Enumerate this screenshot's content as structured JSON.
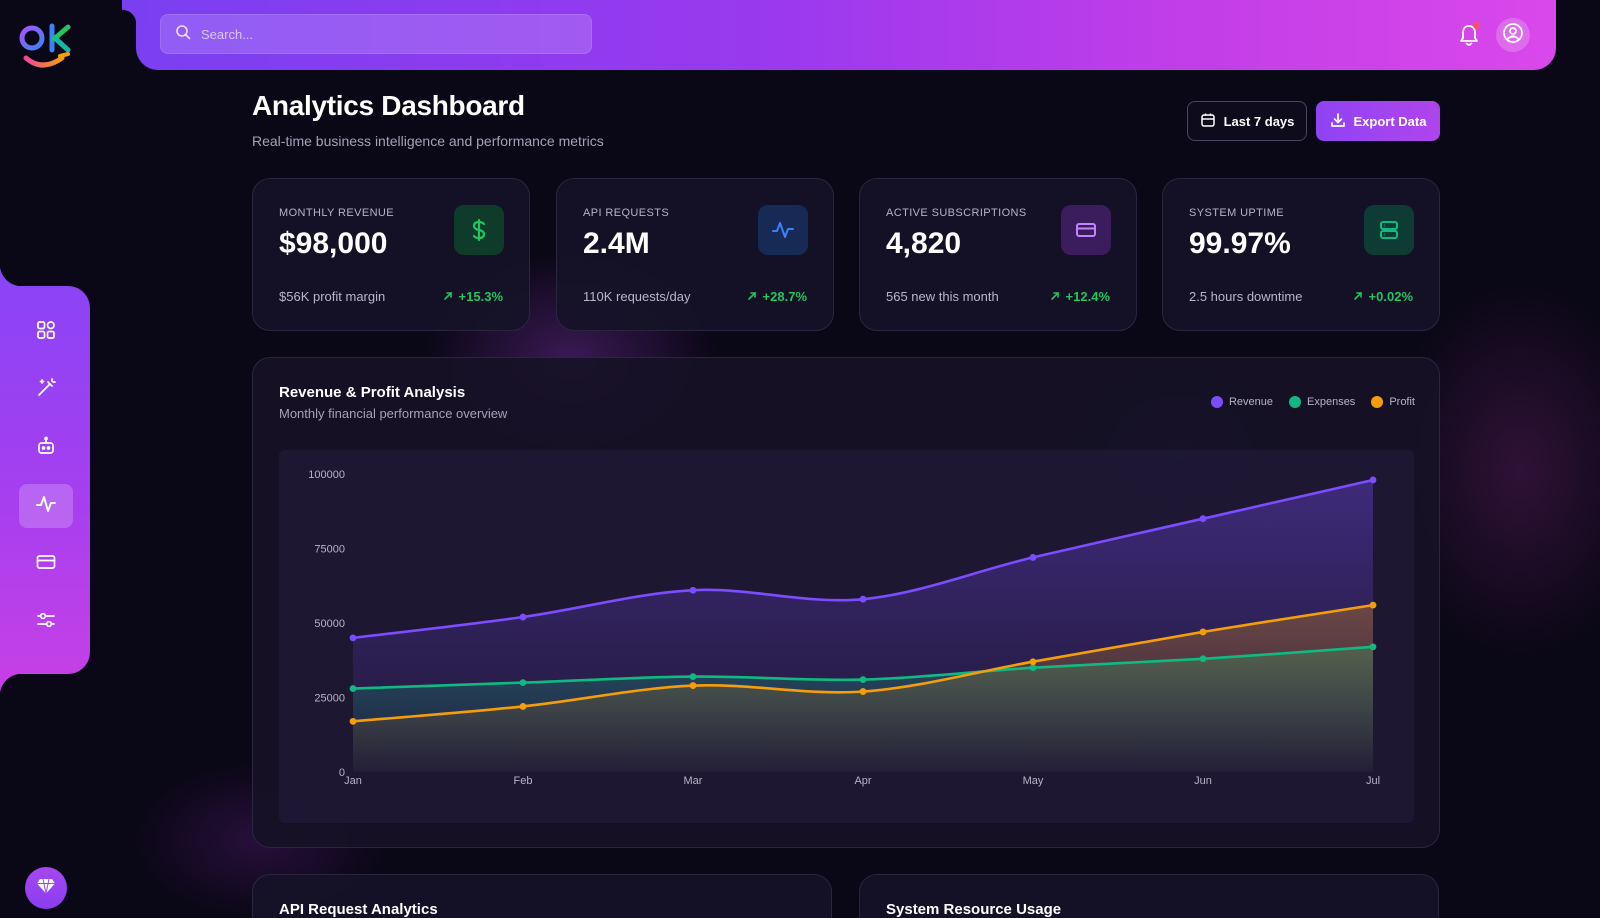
{
  "brand": {
    "logo_text": "OK"
  },
  "header": {
    "search_placeholder": "Search...",
    "notification_icon": "bell-icon",
    "user_icon": "user-circle-icon"
  },
  "sidebar": {
    "items": [
      {
        "icon": "dashboard-grid-icon",
        "active": false
      },
      {
        "icon": "magic-wand-icon",
        "active": false
      },
      {
        "icon": "robot-icon",
        "active": false
      },
      {
        "icon": "activity-pulse-icon",
        "active": true
      },
      {
        "icon": "credit-card-icon",
        "active": false
      },
      {
        "icon": "sliders-icon",
        "active": false
      }
    ],
    "premium_icon": "diamond-icon"
  },
  "page": {
    "title": "Analytics Dashboard",
    "subtitle": "Real-time business intelligence and performance metrics",
    "range_label": "Last 7 days",
    "export_label": "Export Data"
  },
  "stats": [
    {
      "label": "MONTHLY REVENUE",
      "value": "$98,000",
      "footnote": "$56K profit margin",
      "change": "+15.3%",
      "icon": "dollar-icon",
      "icon_color": "#22c55e",
      "icon_bg": "#0f3b2a"
    },
    {
      "label": "API REQUESTS",
      "value": "2.4M",
      "footnote": "110K requests/day",
      "change": "+28.7%",
      "icon": "activity-pulse-icon",
      "icon_color": "#3b82f6",
      "icon_bg": "#172a55"
    },
    {
      "label": "ACTIVE SUBSCRIPTIONS",
      "value": "4,820",
      "footnote": "565 new this month",
      "change": "+12.4%",
      "icon": "credit-card-icon",
      "icon_color": "#a855f7",
      "icon_bg": "#3b1d5e"
    },
    {
      "label": "SYSTEM UPTIME",
      "value": "99.97%",
      "footnote": "2.5 hours downtime",
      "change": "+0.02%",
      "icon": "server-icon",
      "icon_color": "#10b981",
      "icon_bg": "#0e3b33"
    }
  ],
  "chart_panel": {
    "title": "Revenue & Profit Analysis",
    "subtitle": "Monthly financial performance overview"
  },
  "chart_data": {
    "type": "area",
    "categories": [
      "Jan",
      "Feb",
      "Mar",
      "Apr",
      "May",
      "Jun",
      "Jul"
    ],
    "ylim": [
      0,
      100000
    ],
    "yticks": [
      "0",
      "25000",
      "50000",
      "75000",
      "100000"
    ],
    "grid": false,
    "legend_position": "top-right",
    "series": [
      {
        "name": "Revenue",
        "color": "#7c4dff",
        "values": [
          45000,
          52000,
          61000,
          58000,
          72000,
          85000,
          98000
        ]
      },
      {
        "name": "Expenses",
        "color": "#10b981",
        "values": [
          28000,
          30000,
          32000,
          31000,
          35000,
          38000,
          42000
        ]
      },
      {
        "name": "Profit",
        "color": "#f59e0b",
        "values": [
          17000,
          22000,
          29000,
          27000,
          37000,
          47000,
          56000
        ]
      }
    ]
  },
  "bottom_panels": [
    {
      "title": "API Request Analytics"
    },
    {
      "title": "System Resource Usage"
    }
  ]
}
